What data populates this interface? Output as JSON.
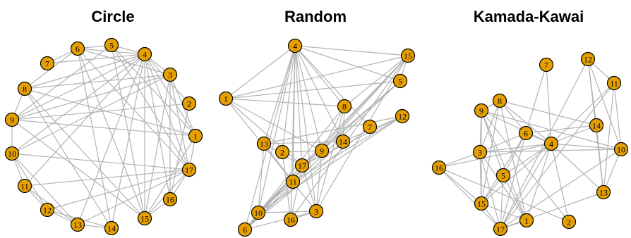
{
  "node_color": "#e69f00",
  "edge_color": "#b3b3b3",
  "edges": [
    [
      1,
      3
    ],
    [
      1,
      4
    ],
    [
      1,
      5
    ],
    [
      1,
      8
    ],
    [
      1,
      9
    ],
    [
      1,
      17
    ],
    [
      1,
      15
    ],
    [
      2,
      4
    ],
    [
      2,
      9
    ],
    [
      2,
      16
    ],
    [
      3,
      4
    ],
    [
      3,
      6
    ],
    [
      3,
      8
    ],
    [
      3,
      9
    ],
    [
      3,
      10
    ],
    [
      3,
      15
    ],
    [
      3,
      16
    ],
    [
      3,
      17
    ],
    [
      4,
      5
    ],
    [
      4,
      6
    ],
    [
      4,
      7
    ],
    [
      4,
      8
    ],
    [
      4,
      9
    ],
    [
      4,
      10
    ],
    [
      4,
      11
    ],
    [
      4,
      13
    ],
    [
      4,
      14
    ],
    [
      4,
      15
    ],
    [
      4,
      16
    ],
    [
      4,
      17
    ],
    [
      5,
      6
    ],
    [
      5,
      9
    ],
    [
      5,
      15
    ],
    [
      5,
      17
    ],
    [
      6,
      7
    ],
    [
      6,
      8
    ],
    [
      6,
      14
    ],
    [
      6,
      15
    ],
    [
      6,
      17
    ],
    [
      8,
      9
    ],
    [
      8,
      14
    ],
    [
      8,
      15
    ],
    [
      9,
      10
    ],
    [
      9,
      15
    ],
    [
      10,
      11
    ],
    [
      10,
      12
    ],
    [
      10,
      13
    ],
    [
      10,
      17
    ],
    [
      11,
      12
    ],
    [
      11,
      13
    ],
    [
      11,
      17
    ],
    [
      12,
      13
    ],
    [
      12,
      14
    ],
    [
      12,
      17
    ],
    [
      13,
      14
    ],
    [
      13,
      17
    ],
    [
      15,
      16
    ],
    [
      15,
      17
    ],
    [
      16,
      17
    ]
  ],
  "panels": [
    {
      "title": "Circle"
    },
    {
      "title": "Random"
    },
    {
      "title": "Kamada-Kawai"
    }
  ]
}
